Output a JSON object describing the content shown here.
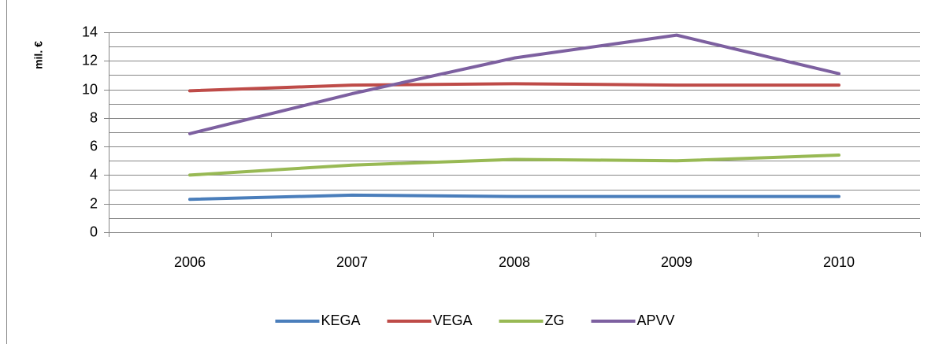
{
  "chart_data": {
    "type": "line",
    "categories": [
      "2006",
      "2007",
      "2008",
      "2009",
      "2010"
    ],
    "y_label": "mil. €",
    "series": [
      {
        "name": "KEGA",
        "color": "#4a7ebb",
        "values": [
          2.3,
          2.6,
          2.5,
          2.5,
          2.5
        ]
      },
      {
        "name": "VEGA",
        "color": "#be4b48",
        "values": [
          9.9,
          10.3,
          10.4,
          10.3,
          10.3
        ]
      },
      {
        "name": "ZG",
        "color": "#98b954",
        "values": [
          4.0,
          4.7,
          5.1,
          5.0,
          5.4
        ]
      },
      {
        "name": "APVV",
        "color": "#7d60a0",
        "values": [
          6.9,
          9.7,
          12.2,
          13.8,
          11.1
        ]
      }
    ],
    "ylim": [
      0,
      14
    ],
    "yticks": [
      0,
      2,
      4,
      6,
      8,
      10,
      12,
      14
    ],
    "y_minor_ticks": [
      1,
      3,
      5,
      7,
      9,
      11,
      13
    ],
    "grid": true,
    "legend": "bottom"
  }
}
